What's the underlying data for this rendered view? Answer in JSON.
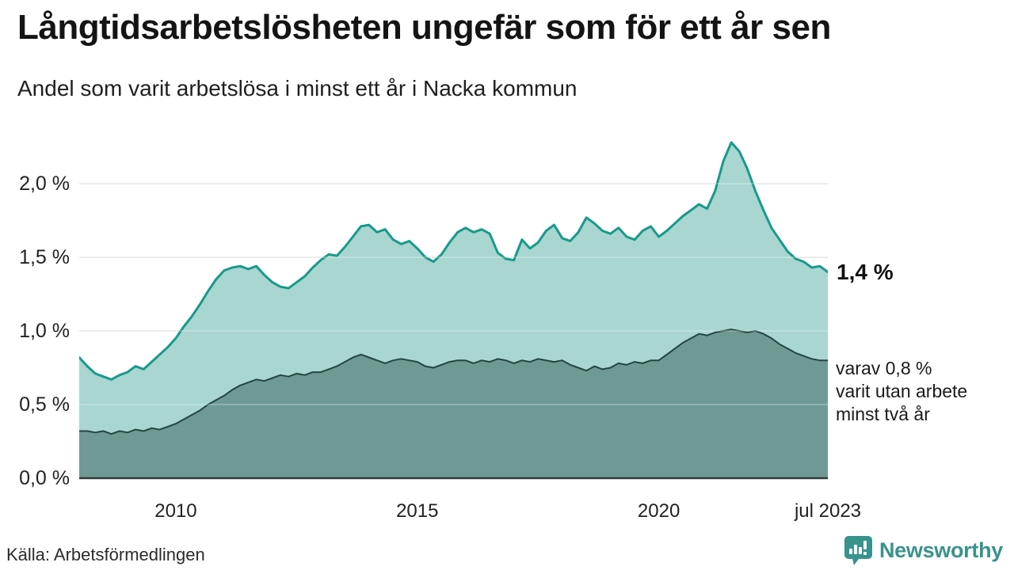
{
  "header": {
    "title": "Långtidsarbetslösheten ungefär som för ett år sen",
    "subtitle": "Andel som varit arbetslösa i minst ett år i Nacka kommun"
  },
  "chart_data": {
    "type": "area",
    "title": "Långtidsarbetslösheten ungefär som för ett år sen",
    "subtitle": "Andel som varit arbetslösa i minst ett år i Nacka kommun",
    "x_start_year": 2008,
    "x_step_months": 2,
    "x_end": 2023.5,
    "ylim": [
      0,
      2.35
    ],
    "grid": true,
    "yticks": [
      {
        "label": "0,0 %",
        "value": 0.0
      },
      {
        "label": "0,5 %",
        "value": 0.5
      },
      {
        "label": "1,0 %",
        "value": 1.0
      },
      {
        "label": "1,5 %",
        "value": 1.5
      },
      {
        "label": "2,0 %",
        "value": 2.0
      }
    ],
    "xticks": [
      {
        "label": "2010",
        "year": 2010
      },
      {
        "label": "2015",
        "year": 2015
      },
      {
        "label": "2020",
        "year": 2020
      },
      {
        "label": "jul 2023",
        "year": 2023.5
      }
    ],
    "series": [
      {
        "name": "Andel arbetslösa minst ett år",
        "line_color": "#179a8b",
        "fill_color": "#a9d6d0",
        "line_width": 3,
        "values": [
          0.82,
          0.76,
          0.71,
          0.69,
          0.67,
          0.7,
          0.72,
          0.76,
          0.74,
          0.79,
          0.84,
          0.89,
          0.95,
          1.03,
          1.1,
          1.18,
          1.27,
          1.35,
          1.41,
          1.43,
          1.44,
          1.42,
          1.44,
          1.38,
          1.33,
          1.3,
          1.29,
          1.33,
          1.37,
          1.43,
          1.48,
          1.52,
          1.51,
          1.57,
          1.64,
          1.71,
          1.72,
          1.67,
          1.69,
          1.62,
          1.59,
          1.61,
          1.56,
          1.5,
          1.47,
          1.52,
          1.6,
          1.67,
          1.7,
          1.67,
          1.69,
          1.66,
          1.53,
          1.49,
          1.48,
          1.62,
          1.56,
          1.6,
          1.68,
          1.72,
          1.63,
          1.61,
          1.67,
          1.77,
          1.73,
          1.68,
          1.66,
          1.7,
          1.64,
          1.62,
          1.68,
          1.71,
          1.64,
          1.68,
          1.73,
          1.78,
          1.82,
          1.86,
          1.83,
          1.95,
          2.15,
          2.28,
          2.22,
          2.1,
          1.95,
          1.82,
          1.7,
          1.62,
          1.54,
          1.49,
          1.47,
          1.43,
          1.44,
          1.4
        ]
      },
      {
        "name": "varav utan arbete minst två år",
        "line_color": "#24453f",
        "fill_color": "#6f9a94",
        "line_width": 2,
        "values": [
          0.32,
          0.32,
          0.31,
          0.32,
          0.3,
          0.32,
          0.31,
          0.33,
          0.32,
          0.34,
          0.33,
          0.35,
          0.37,
          0.4,
          0.43,
          0.46,
          0.5,
          0.53,
          0.56,
          0.6,
          0.63,
          0.65,
          0.67,
          0.66,
          0.68,
          0.7,
          0.69,
          0.71,
          0.7,
          0.72,
          0.72,
          0.74,
          0.76,
          0.79,
          0.82,
          0.84,
          0.82,
          0.8,
          0.78,
          0.8,
          0.81,
          0.8,
          0.79,
          0.76,
          0.75,
          0.77,
          0.79,
          0.8,
          0.8,
          0.78,
          0.8,
          0.79,
          0.81,
          0.8,
          0.78,
          0.8,
          0.79,
          0.81,
          0.8,
          0.79,
          0.8,
          0.77,
          0.75,
          0.73,
          0.76,
          0.74,
          0.75,
          0.78,
          0.77,
          0.79,
          0.78,
          0.8,
          0.8,
          0.84,
          0.88,
          0.92,
          0.95,
          0.98,
          0.97,
          0.99,
          1.0,
          1.01,
          1.0,
          0.99,
          1.0,
          0.98,
          0.95,
          0.91,
          0.88,
          0.85,
          0.83,
          0.81,
          0.8,
          0.8
        ]
      }
    ],
    "annotations": {
      "end_value_label": "1,4 %",
      "end_value": 1.4,
      "sub_label_lines": [
        "varav 0,8 %",
        "varit utan arbete",
        "minst två år"
      ],
      "sub_value": 0.8
    },
    "legend_position": "right-annotations"
  },
  "footer": {
    "source": "Källa: Arbetsförmedlingen",
    "brand": "Newsworthy"
  },
  "colors": {
    "accent_teal": "#179a8b",
    "fill_light": "#a9d6d0",
    "fill_dark": "#6f9a94",
    "dark_line": "#24453f",
    "gridline": "#dcdddd",
    "baseline": "#2f3c3a",
    "brand_teal": "#38938c"
  }
}
